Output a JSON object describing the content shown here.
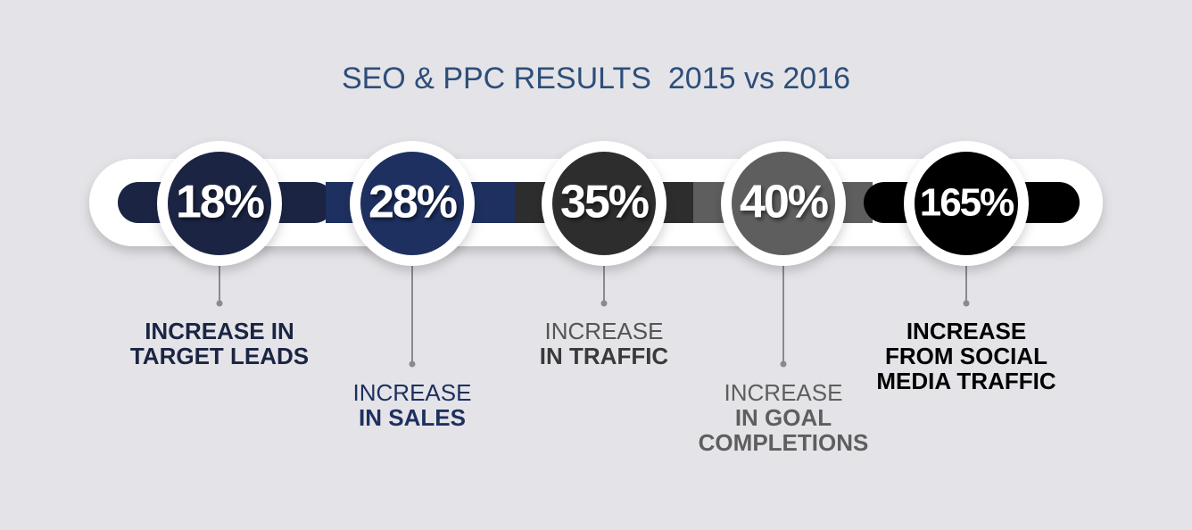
{
  "title": "SEO & PPC RESULTS  2015 vs 2016",
  "items": [
    {
      "value": "18%",
      "label": [
        "INCREASE IN",
        "TARGET LEADS"
      ],
      "color": "#1b2543"
    },
    {
      "value": "28%",
      "label": [
        "INCREASE",
        "IN SALES"
      ],
      "color": "#1e3060"
    },
    {
      "value": "35%",
      "label": [
        "INCREASE",
        "IN TRAFFIC"
      ],
      "color": "#2d2d2d"
    },
    {
      "value": "40%",
      "label": [
        "INCREASE",
        "IN GOAL",
        "COMPLETIONS"
      ],
      "color": "#5e5e5e"
    },
    {
      "value": "165%",
      "label": [
        "INCREASE",
        "FROM SOCIAL",
        "MEDIA TRAFFIC"
      ],
      "color": "#000000"
    }
  ]
}
